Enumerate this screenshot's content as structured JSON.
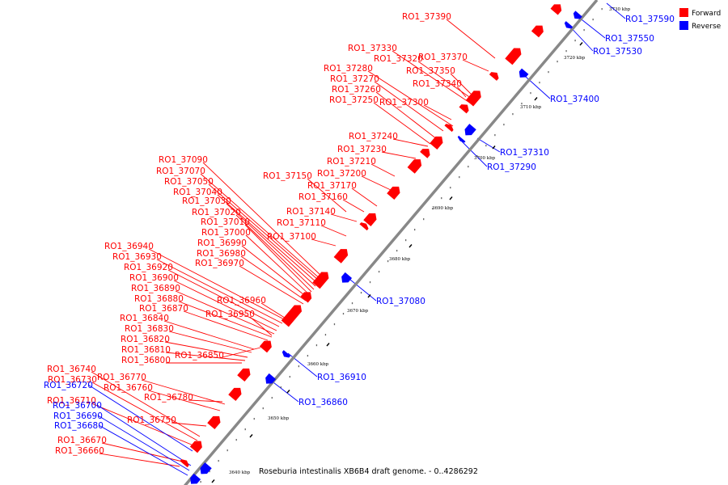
{
  "caption": "Roseburia intestinalis XB6B4 draft genome. - 0..4286292",
  "legend": [
    {
      "label": "Forward",
      "color": "#ff0000"
    },
    {
      "label": "Reverse",
      "color": "#0000ff"
    }
  ],
  "colors": {
    "forward": "#ff0000",
    "reverse": "#0000ff",
    "axis": "#808080"
  },
  "axis_ticks": [
    "3640 kbp",
    "3650 kbp",
    "3660 kbp",
    "3670 kbp",
    "3680 kbp",
    "3690 kbp",
    "3700 kbp",
    "3710 kbp",
    "3720 kbp",
    "3730 kbp"
  ],
  "forward_labels": [
    "RO1_37390",
    "RO1_37330",
    "RO1_37320",
    "RO1_37370",
    "RO1_37280",
    "RO1_37350",
    "RO1_37270",
    "RO1_37340",
    "RO1_37260",
    "RO1_37250",
    "RO1_37300",
    "RO1_37240",
    "RO1_37230",
    "RO1_37210",
    "RO1_37150",
    "RO1_37200",
    "RO1_37170",
    "RO1_37160",
    "RO1_37140",
    "RO1_37110",
    "RO1_37100",
    "RO1_37090",
    "RO1_37070",
    "RO1_37050",
    "RO1_37040",
    "RO1_37030",
    "RO1_37020",
    "RO1_37010",
    "RO1_37000",
    "RO1_36990",
    "RO1_36980",
    "RO1_36970",
    "RO1_36940",
    "RO1_36930",
    "RO1_36920",
    "RO1_36900",
    "RO1_36890",
    "RO1_36880",
    "RO1_36870",
    "RO1_36960",
    "RO1_36950",
    "RO1_36840",
    "RO1_36830",
    "RO1_36820",
    "RO1_36810",
    "RO1_36800",
    "RO1_36850",
    "RO1_36740",
    "RO1_36730",
    "RO1_36770",
    "RO1_36760",
    "RO1_36710",
    "RO1_36780",
    "RO1_36750",
    "RO1_36670",
    "RO1_36660"
  ],
  "reverse_labels": [
    "RO1_37590",
    "RO1_37550",
    "RO1_37530",
    "RO1_37400",
    "RO1_37310",
    "RO1_37290",
    "RO1_37080",
    "RO1_36910",
    "RO1_36860",
    "RO1_36720",
    "RO1_36700",
    "RO1_36690",
    "RO1_36680"
  ]
}
